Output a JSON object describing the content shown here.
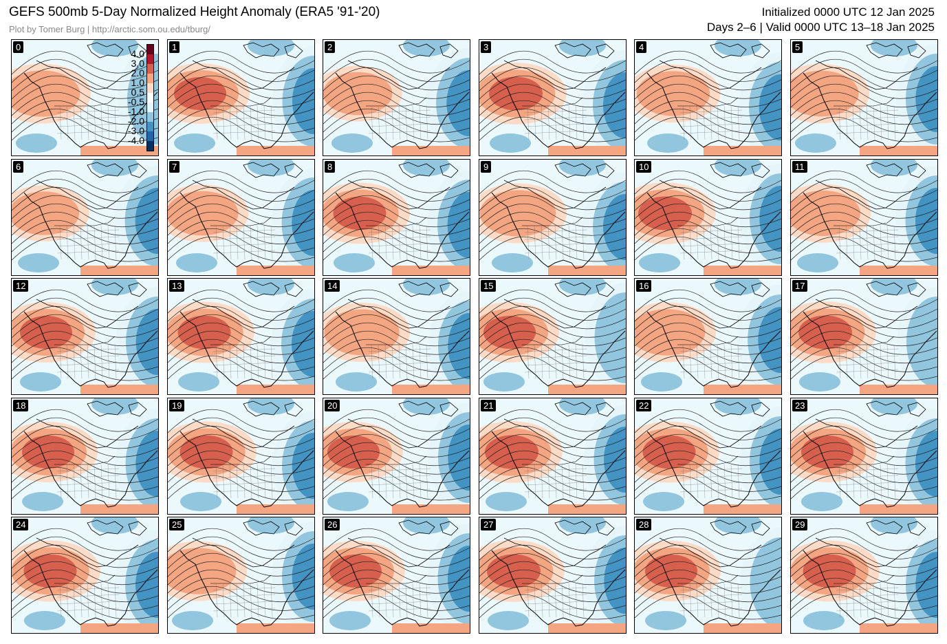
{
  "header": {
    "title": "GEFS 500mb 5-Day Normalized Height Anomaly (ERA5 '91-'20)",
    "credit": "Plot by Tomer Burg | http://arctic.som.ou.edu/tburg/",
    "initialized": "Initialized 0000 UTC 12 Jan 2025",
    "valid": "Days 2–6 | Valid 0000 UTC 13–18 Jan 2025"
  },
  "colorbar": {
    "ticks": [
      "4.0",
      "3.0",
      "2.0",
      "1.0",
      "0.5",
      "-0.5",
      "-1.0",
      "-2.0",
      "-3.0",
      "-4.0"
    ],
    "colors": [
      "#67001f",
      "#b2182b",
      "#d6604d",
      "#f4a582",
      "#fddbc7",
      "#ffffff",
      "#e6f5f9",
      "#92c5de",
      "#4393c3",
      "#2166ac",
      "#053061"
    ]
  },
  "panels": [
    {
      "label": "0",
      "west_ridge": 1.9,
      "east_trough": -1.8
    },
    {
      "label": "1",
      "west_ridge": 2.0,
      "east_trough": -2.1
    },
    {
      "label": "2",
      "west_ridge": 1.2,
      "east_trough": -2.6
    },
    {
      "label": "3",
      "west_ridge": 2.2,
      "east_trough": -2.4
    },
    {
      "label": "4",
      "west_ridge": 1.6,
      "east_trough": -2.2
    },
    {
      "label": "5",
      "west_ridge": 1.8,
      "east_trough": -2.0
    },
    {
      "label": "6",
      "west_ridge": 1.3,
      "east_trough": -2.5
    },
    {
      "label": "7",
      "west_ridge": 1.5,
      "east_trough": -2.3
    },
    {
      "label": "8",
      "west_ridge": 2.1,
      "east_trough": -2.2
    },
    {
      "label": "9",
      "west_ridge": 1.9,
      "east_trough": -2.4
    },
    {
      "label": "10",
      "west_ridge": 2.2,
      "east_trough": -2.0
    },
    {
      "label": "11",
      "west_ridge": 1.7,
      "east_trough": -2.1
    },
    {
      "label": "12",
      "west_ridge": 2.0,
      "east_trough": -2.2
    },
    {
      "label": "13",
      "west_ridge": 2.1,
      "east_trough": -2.4
    },
    {
      "label": "14",
      "west_ridge": 1.8,
      "east_trough": -2.0
    },
    {
      "label": "15",
      "west_ridge": 2.0,
      "east_trough": -1.9
    },
    {
      "label": "16",
      "west_ridge": 1.9,
      "east_trough": -2.6
    },
    {
      "label": "17",
      "west_ridge": 2.2,
      "east_trough": -1.8
    },
    {
      "label": "18",
      "west_ridge": 2.0,
      "east_trough": -2.3
    },
    {
      "label": "19",
      "west_ridge": 2.1,
      "east_trough": -2.2
    },
    {
      "label": "20",
      "west_ridge": 2.0,
      "east_trough": -2.0
    },
    {
      "label": "21",
      "west_ridge": 2.2,
      "east_trough": -2.1
    },
    {
      "label": "22",
      "west_ridge": 2.1,
      "east_trough": -2.0
    },
    {
      "label": "23",
      "west_ridge": 2.0,
      "east_trough": -2.1
    },
    {
      "label": "24",
      "west_ridge": 2.1,
      "east_trough": -2.4
    },
    {
      "label": "25",
      "west_ridge": 1.9,
      "east_trough": -2.2
    },
    {
      "label": "26",
      "west_ridge": 2.0,
      "east_trough": -2.1
    },
    {
      "label": "27",
      "west_ridge": 2.2,
      "east_trough": -2.0
    },
    {
      "label": "28",
      "west_ridge": 2.0,
      "east_trough": -1.9
    },
    {
      "label": "29",
      "west_ridge": 2.1,
      "east_trough": -2.0
    }
  ]
}
